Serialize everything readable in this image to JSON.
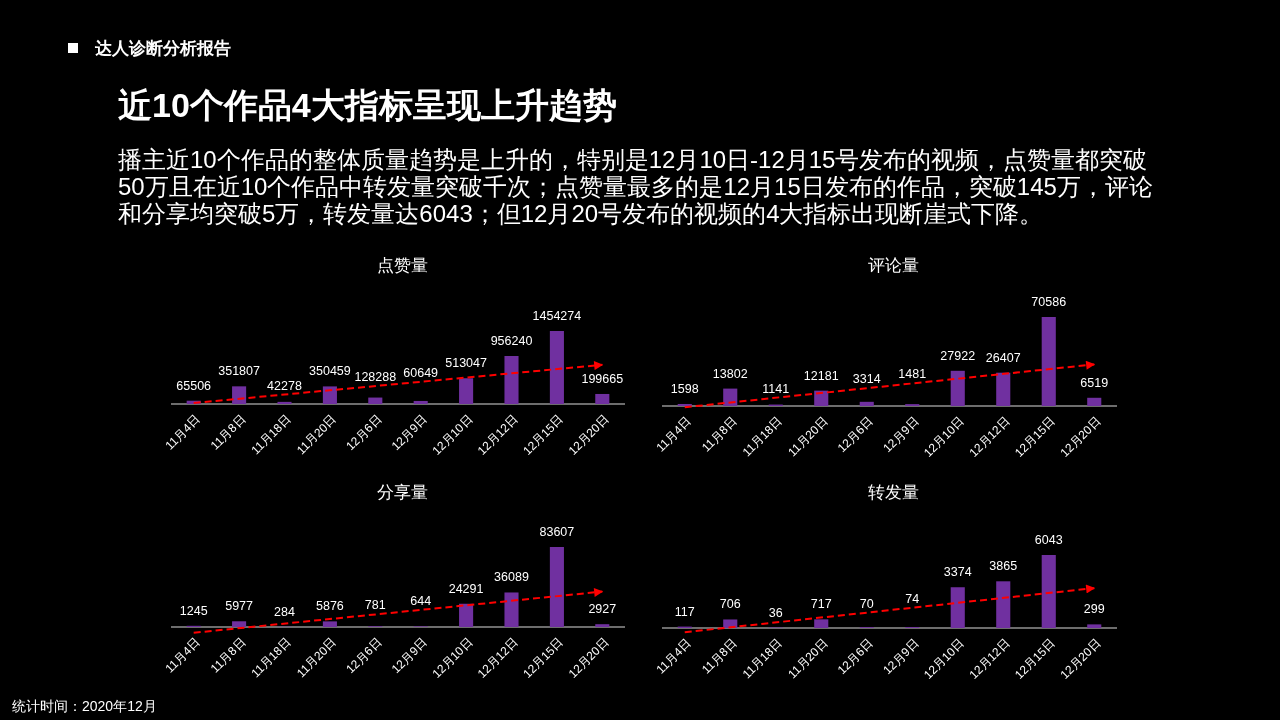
{
  "chart_data": [
    {
      "type": "other",
      "title": "近10个作品4大指标呈现上升趋势",
      "subtitle": "播主近10个作品的整体质量趋势是上升的，特别是12月10日-12月15号发布的视频，点赞量都突破50万且在近10个作品中转发量突破千次；点赞量最多的是12月15日发布的作品，突破145万，评论和分享均突破5万，转发量达6043；但12月20号发布的视频的4大指标出现断崖式下降。",
      "annotations": [
        "达人诊断分析报告"
      ]
    },
    {
      "type": "bar",
      "title": "点赞量",
      "categories": [
        "11月4日",
        "11月8日",
        "11月18日",
        "11月20日",
        "12月6日",
        "12月9日",
        "12月10日",
        "12月12日",
        "12月15日",
        "12月20日"
      ],
      "series": [
        {
          "type": "bar",
          "color": "#7030a0",
          "values": [
            65506,
            351807,
            42278,
            350459,
            128288,
            60649,
            513047,
            956240,
            1454274,
            199665
          ],
          "value_labels": [
            "65506",
            "351807",
            "42278",
            "350459",
            "128288",
            "60649",
            "513047",
            "956240",
            "1454274",
            "199665"
          ]
        },
        {
          "type": "line",
          "color": "#ff0000",
          "line_style": "dashed",
          "x": [
            "11月4日",
            "12月20日"
          ],
          "values": [
            20000,
            780000
          ]
        }
      ]
    },
    {
      "type": "bar",
      "title": "评论量",
      "categories": [
        "11月4日",
        "11月8日",
        "11月18日",
        "11月20日",
        "12月6日",
        "12月9日",
        "12月10日",
        "12月12日",
        "12月15日",
        "12月20日"
      ],
      "series": [
        {
          "type": "bar",
          "color": "#7030a0",
          "values": [
            1598,
            13802,
            1141,
            12181,
            3314,
            1481,
            27922,
            26407,
            70586,
            6519
          ],
          "value_labels": [
            "1598",
            "13802",
            "1141",
            "12181",
            "3314",
            "1481",
            "27922",
            "26407",
            "70586",
            "6519"
          ]
        },
        {
          "type": "line",
          "color": "#ff0000",
          "line_style": "dashed",
          "x": [
            "11月4日",
            "12月20日"
          ],
          "values": [
            -1000,
            33000
          ]
        }
      ]
    },
    {
      "type": "bar",
      "title": "分享量",
      "categories": [
        "11月4日",
        "11月8日",
        "11月18日",
        "11月20日",
        "12月6日",
        "12月9日",
        "12月10日",
        "12月12日",
        "12月15日",
        "12月20日"
      ],
      "series": [
        {
          "type": "bar",
          "color": "#7030a0",
          "values": [
            1245,
            5977,
            284,
            5876,
            781,
            644,
            24291,
            36089,
            83607,
            2927
          ],
          "value_labels": [
            "1245",
            "5977",
            "284",
            "5876",
            "781",
            "644",
            "24291",
            "36089",
            "83607",
            "2927"
          ]
        },
        {
          "type": "line",
          "color": "#ff0000",
          "line_style": "dashed",
          "x": [
            "11月4日",
            "12月20日"
          ],
          "values": [
            -6000,
            37000
          ]
        }
      ]
    },
    {
      "type": "bar",
      "title": "转发量",
      "categories": [
        "11月4日",
        "11月8日",
        "11月18日",
        "11月20日",
        "12月6日",
        "12月9日",
        "12月10日",
        "12月12日",
        "12月15日",
        "12月20日"
      ],
      "series": [
        {
          "type": "bar",
          "color": "#7030a0",
          "values": [
            117,
            706,
            36,
            717,
            70,
            74,
            3374,
            3865,
            6043,
            299
          ],
          "value_labels": [
            "117",
            "706",
            "36",
            "717",
            "70",
            "74",
            "3374",
            "3865",
            "6043",
            "299"
          ]
        },
        {
          "type": "line",
          "color": "#ff0000",
          "line_style": "dashed",
          "x": [
            "11月4日",
            "12月20日"
          ],
          "values": [
            -350,
            3300
          ]
        }
      ]
    },
    {
      "type": "other",
      "annotations": [
        "统计时间：2020年12月"
      ]
    }
  ]
}
